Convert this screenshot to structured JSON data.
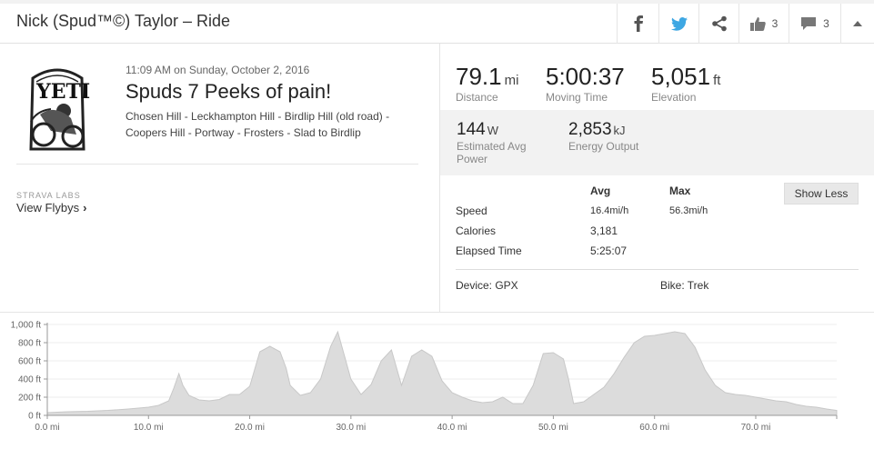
{
  "header": {
    "title": "Nick (Spud™©) Taylor – Ride",
    "kudos_count": "3",
    "comments_count": "3",
    "icons": [
      "facebook-icon",
      "twitter-icon",
      "share-icon",
      "thumbs-up-icon",
      "comment-icon",
      "caret-up-icon"
    ]
  },
  "activity": {
    "logo_text": "YETI",
    "datetime": "11:09 AM on Sunday, October 2, 2016",
    "name": "Spuds 7 Peeks of pain!",
    "description": "Chosen Hill - Leckhampton Hill - Birdlip Hill (old road) - Coopers Hill - Portway - Frosters - Slad to Birdlip"
  },
  "labs": {
    "label": "STRAVA LABS",
    "link": "View Flybys"
  },
  "stats": {
    "distance": {
      "value": "79.1",
      "unit": "mi",
      "label": "Distance"
    },
    "moving_time": {
      "value": "5:00:37",
      "label": "Moving Time"
    },
    "elevation": {
      "value": "5,051",
      "unit": "ft",
      "label": "Elevation"
    },
    "power": {
      "value": "144",
      "unit": "W",
      "label_line1": "Estimated Avg",
      "label_line2": "Power"
    },
    "energy": {
      "value": "2,853",
      "unit": "kJ",
      "label": "Energy Output"
    }
  },
  "more_stats": {
    "col_avg": "Avg",
    "col_max": "Max",
    "rows": [
      {
        "label": "Speed",
        "avg": "16.4mi/h",
        "max": "56.3mi/h"
      },
      {
        "label": "Calories",
        "avg": "3,181",
        "max": ""
      },
      {
        "label": "Elapsed Time",
        "avg": "5:25:07",
        "max": ""
      }
    ],
    "show_less": "Show Less",
    "device": "Device: GPX",
    "bike": "Bike: Trek"
  },
  "chart_data": {
    "type": "area",
    "title": "",
    "xlabel": "",
    "ylabel": "",
    "xlim": [
      0,
      78
    ],
    "ylim": [
      0,
      1000
    ],
    "x_ticks": [
      "0.0 mi",
      "10.0 mi",
      "20.0 mi",
      "30.0 mi",
      "40.0 mi",
      "50.0 mi",
      "60.0 mi",
      "70.0 mi"
    ],
    "y_ticks": [
      "0 ft",
      "200 ft",
      "400 ft",
      "600 ft",
      "800 ft",
      "1,000 ft"
    ],
    "grid": true,
    "series": [
      {
        "x": [
          0,
          2,
          4,
          6,
          8,
          10,
          11,
          12,
          12.5,
          13,
          13.4,
          14,
          15,
          16,
          17,
          18,
          19,
          20,
          21,
          22,
          23,
          23.6,
          24,
          25,
          26,
          27,
          28,
          28.7,
          29,
          30,
          31,
          32,
          33,
          34,
          35,
          36,
          37,
          38,
          39,
          40,
          41,
          42,
          43,
          44,
          45,
          46,
          47,
          48,
          49,
          50,
          51,
          51.5,
          52,
          53,
          54,
          55,
          56,
          57,
          58,
          59,
          60,
          61,
          62,
          63,
          64,
          65,
          66,
          67,
          68,
          69,
          70,
          71,
          72,
          73,
          74,
          75,
          76,
          77,
          78
        ],
        "y": [
          30,
          40,
          45,
          55,
          70,
          90,
          110,
          160,
          300,
          460,
          330,
          220,
          170,
          160,
          175,
          230,
          230,
          320,
          700,
          760,
          700,
          520,
          330,
          220,
          250,
          400,
          760,
          920,
          800,
          400,
          230,
          340,
          600,
          720,
          330,
          650,
          720,
          650,
          380,
          250,
          200,
          160,
          140,
          150,
          200,
          130,
          130,
          330,
          680,
          690,
          620,
          400,
          130,
          150,
          230,
          310,
          460,
          640,
          800,
          870,
          880,
          900,
          920,
          900,
          750,
          500,
          330,
          250,
          230,
          220,
          200,
          180,
          160,
          150,
          120,
          100,
          90,
          70,
          55
        ]
      }
    ]
  }
}
